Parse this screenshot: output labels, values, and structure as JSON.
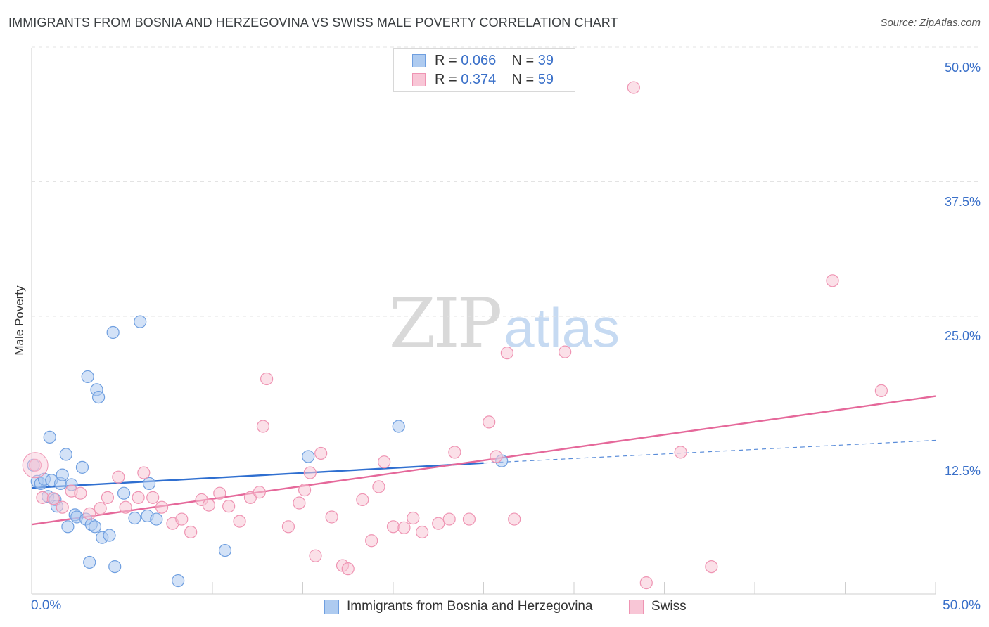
{
  "title": "IMMIGRANTS FROM BOSNIA AND HERZEGOVINA VS SWISS MALE POVERTY CORRELATION CHART",
  "source": "Source: ZipAtlas.com",
  "watermark": {
    "part1": "ZIP",
    "part2": "atlas"
  },
  "colors": {
    "blue_fill": "#aecbf0",
    "blue_stroke": "#6f9fe0",
    "blue_line": "#2f6fd0",
    "pink_fill": "#f8c6d6",
    "pink_stroke": "#ef94b3",
    "pink_line": "#e5689a",
    "axis_text": "#3a70c9"
  },
  "legend_top": [
    {
      "r_label": "R = ",
      "r_value": "0.066",
      "n_label": "N = ",
      "n_value": "39"
    },
    {
      "r_label": "R = ",
      "r_value": "0.374",
      "n_label": "N = ",
      "n_value": "59"
    }
  ],
  "chart_data": {
    "type": "scatter",
    "title": "IMMIGRANTS FROM BOSNIA AND HERZEGOVINA VS SWISS MALE POVERTY CORRELATION CHART",
    "xlabel": "",
    "ylabel": "Male Poverty",
    "xlim": [
      0,
      50
    ],
    "ylim": [
      0,
      50
    ],
    "x_tick_labels": [
      "0.0%",
      "50.0%"
    ],
    "y_tick_labels": [
      "12.5%",
      "25.0%",
      "37.5%",
      "50.0%"
    ],
    "y_ticks": [
      12.5,
      25.0,
      37.5,
      50.0
    ],
    "grid": true,
    "legend_position": "bottom-center",
    "series": [
      {
        "name": "Immigrants from Bosnia and Herzegovina",
        "r": 0.066,
        "n": 39,
        "points": [
          [
            0.1,
            12.0
          ],
          [
            0.3,
            10.5
          ],
          [
            0.5,
            10.3
          ],
          [
            0.7,
            10.7
          ],
          [
            0.9,
            9.1
          ],
          [
            1.0,
            14.6
          ],
          [
            1.1,
            10.6
          ],
          [
            1.3,
            8.8
          ],
          [
            1.4,
            8.2
          ],
          [
            1.6,
            10.3
          ],
          [
            1.7,
            11.1
          ],
          [
            1.9,
            13.0
          ],
          [
            2.0,
            6.3
          ],
          [
            2.2,
            10.2
          ],
          [
            2.4,
            7.4
          ],
          [
            2.5,
            7.2
          ],
          [
            2.8,
            11.8
          ],
          [
            3.0,
            7.0
          ],
          [
            3.2,
            3.0
          ],
          [
            3.1,
            20.2
          ],
          [
            3.3,
            6.5
          ],
          [
            3.5,
            6.3
          ],
          [
            3.6,
            19.0
          ],
          [
            3.7,
            18.3
          ],
          [
            3.9,
            5.3
          ],
          [
            4.3,
            5.5
          ],
          [
            4.6,
            2.6
          ],
          [
            4.5,
            24.3
          ],
          [
            5.1,
            9.4
          ],
          [
            5.7,
            7.1
          ],
          [
            6.0,
            25.3
          ],
          [
            6.4,
            7.3
          ],
          [
            6.5,
            10.3
          ],
          [
            6.9,
            7.0
          ],
          [
            8.1,
            1.3
          ],
          [
            10.7,
            4.1
          ],
          [
            15.3,
            12.8
          ],
          [
            20.3,
            15.6
          ],
          [
            26.0,
            12.4
          ]
        ],
        "trend": {
          "x_start": 0,
          "y_start": 9.9,
          "x_end": 25,
          "y_end": 12.2,
          "dash_to_x": 50,
          "dash_to_y": 14.3
        }
      },
      {
        "name": "Swiss",
        "r": 0.374,
        "n": 59,
        "points": [
          [
            0.2,
            12.0
          ],
          [
            0.6,
            9.0
          ],
          [
            1.2,
            8.9
          ],
          [
            1.7,
            8.1
          ],
          [
            2.2,
            9.6
          ],
          [
            2.7,
            9.4
          ],
          [
            3.2,
            7.5
          ],
          [
            3.8,
            8.0
          ],
          [
            4.2,
            9.0
          ],
          [
            4.8,
            10.9
          ],
          [
            5.2,
            8.1
          ],
          [
            5.9,
            9.0
          ],
          [
            6.2,
            11.3
          ],
          [
            6.7,
            9.0
          ],
          [
            7.2,
            8.1
          ],
          [
            7.8,
            6.6
          ],
          [
            8.3,
            7.0
          ],
          [
            8.8,
            5.8
          ],
          [
            9.4,
            8.8
          ],
          [
            9.8,
            8.3
          ],
          [
            10.4,
            9.4
          ],
          [
            10.9,
            8.2
          ],
          [
            11.5,
            6.8
          ],
          [
            12.1,
            9.0
          ],
          [
            12.6,
            9.5
          ],
          [
            13.0,
            20.0
          ],
          [
            12.8,
            15.6
          ],
          [
            14.2,
            6.3
          ],
          [
            14.8,
            8.5
          ],
          [
            15.1,
            9.7
          ],
          [
            15.4,
            11.3
          ],
          [
            15.7,
            3.6
          ],
          [
            16.0,
            13.1
          ],
          [
            16.6,
            7.2
          ],
          [
            17.2,
            2.7
          ],
          [
            17.5,
            2.4
          ],
          [
            18.3,
            8.8
          ],
          [
            18.8,
            5.0
          ],
          [
            19.2,
            10.0
          ],
          [
            19.5,
            12.3
          ],
          [
            20.0,
            6.3
          ],
          [
            20.6,
            6.2
          ],
          [
            21.1,
            7.1
          ],
          [
            21.6,
            5.8
          ],
          [
            22.5,
            6.6
          ],
          [
            23.1,
            7.0
          ],
          [
            23.4,
            13.2
          ],
          [
            24.2,
            7.0
          ],
          [
            25.3,
            16.0
          ],
          [
            25.7,
            12.8
          ],
          [
            26.3,
            22.4
          ],
          [
            26.7,
            7.0
          ],
          [
            29.5,
            22.5
          ],
          [
            33.3,
            47.0
          ],
          [
            34.0,
            1.1
          ],
          [
            35.9,
            13.2
          ],
          [
            37.6,
            2.6
          ],
          [
            44.3,
            29.1
          ],
          [
            47.0,
            18.9
          ]
        ],
        "trend": {
          "x_start": 0,
          "y_start": 6.5,
          "x_end": 50,
          "y_end": 18.4
        }
      }
    ]
  }
}
